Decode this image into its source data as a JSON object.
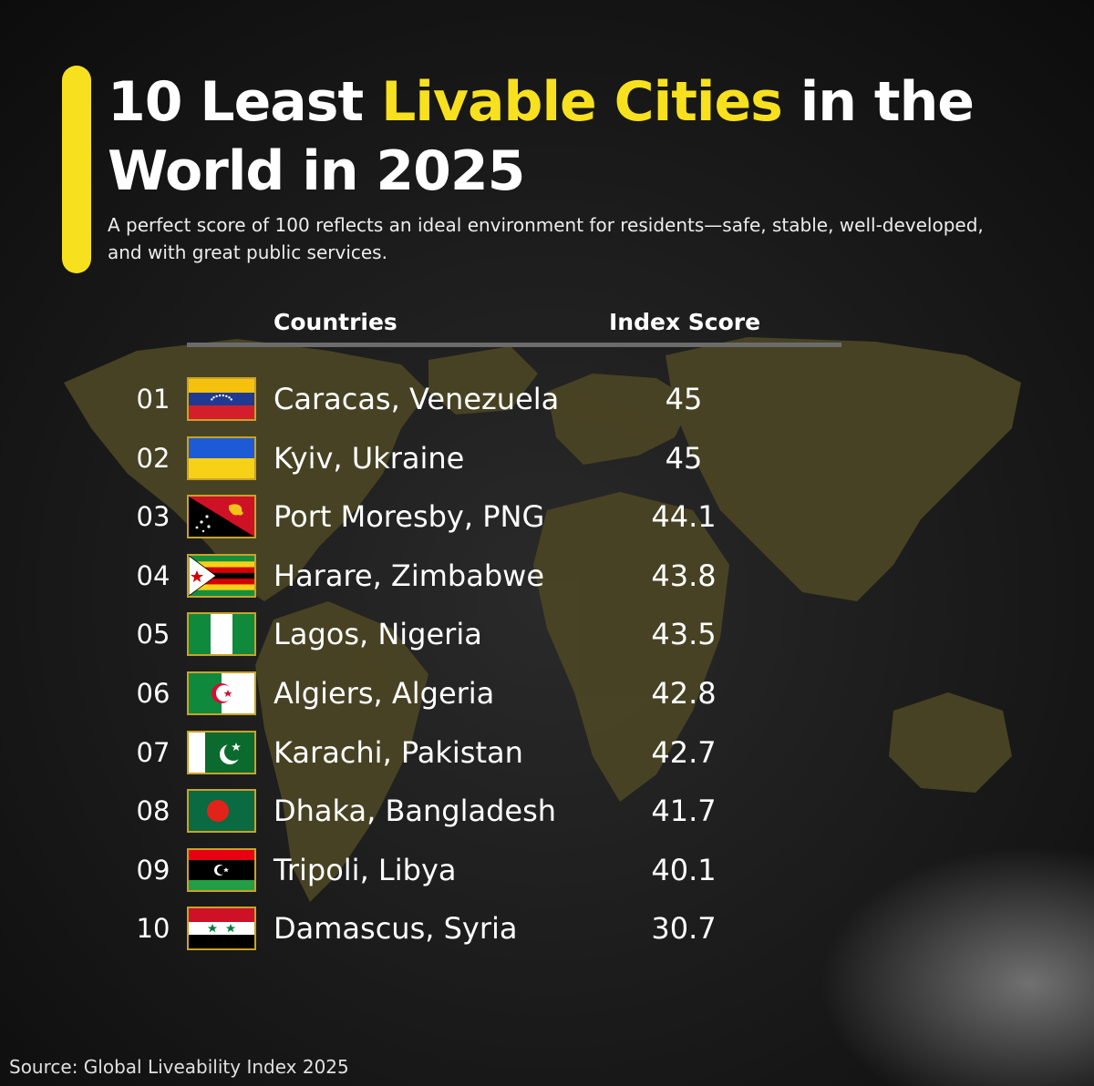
{
  "title": {
    "part1": "10 Least ",
    "highlight": "Livable Cities",
    "part2": " in the World in 2025"
  },
  "subtitle": "A perfect score of 100 reflects an ideal environment for residents—safe, stable, well-developed, and with great public services.",
  "source": "Source: Global Liveability Index 2025",
  "colors": {
    "accent": "#f7e11e",
    "background": "#111111",
    "map": "#4a4424",
    "flag_border": "#c9a227"
  },
  "chart_data": {
    "type": "table",
    "columns": [
      "Countries",
      "Index Score"
    ],
    "rows": [
      {
        "rank": "01",
        "city": "Caracas, Venezuela",
        "score": "45",
        "flag": "venezuela-flag-icon"
      },
      {
        "rank": "02",
        "city": "Kyiv, Ukraine",
        "score": "45",
        "flag": "ukraine-flag-icon"
      },
      {
        "rank": "03",
        "city": "Port Moresby, PNG",
        "score": "44.1",
        "flag": "papua-new-guinea-flag-icon"
      },
      {
        "rank": "04",
        "city": "Harare, Zimbabwe",
        "score": "43.8",
        "flag": "zimbabwe-flag-icon"
      },
      {
        "rank": "05",
        "city": "Lagos, Nigeria",
        "score": "43.5",
        "flag": "nigeria-flag-icon"
      },
      {
        "rank": "06",
        "city": "Algiers, Algeria",
        "score": "42.8",
        "flag": "algeria-flag-icon"
      },
      {
        "rank": "07",
        "city": "Karachi, Pakistan",
        "score": "42.7",
        "flag": "pakistan-flag-icon"
      },
      {
        "rank": "08",
        "city": "Dhaka, Bangladesh",
        "score": "41.7",
        "flag": "bangladesh-flag-icon"
      },
      {
        "rank": "09",
        "city": "Tripoli, Libya",
        "score": "40.1",
        "flag": "libya-flag-icon"
      },
      {
        "rank": "10",
        "city": "Damascus, Syria",
        "score": "30.7",
        "flag": "syria-flag-icon"
      }
    ]
  }
}
